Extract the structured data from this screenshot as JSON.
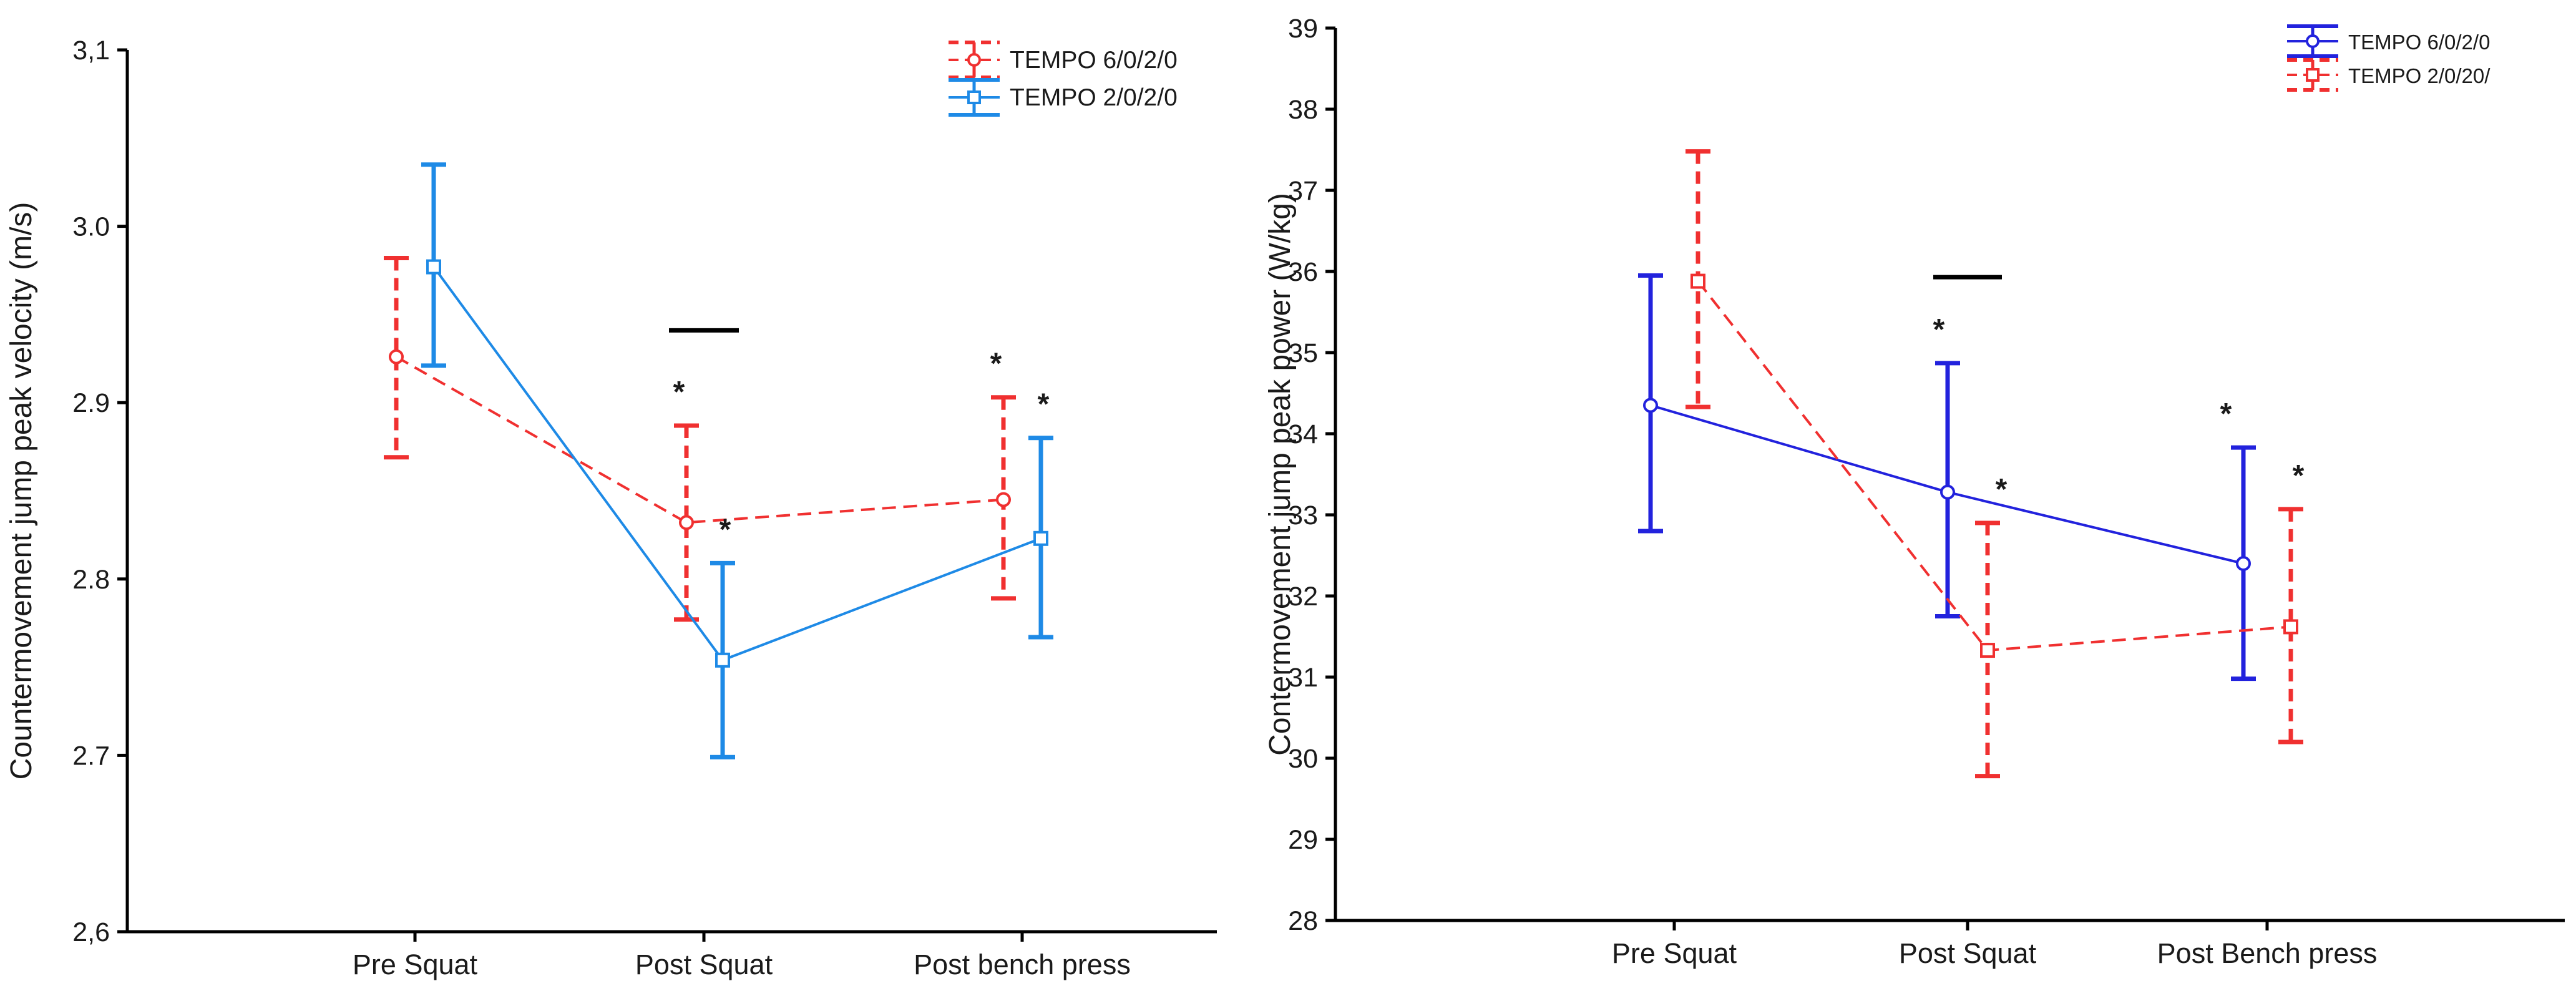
{
  "colors": {
    "left_a": "#f03030",
    "left_b": "#1e8ae6",
    "right_a": "#2222dd",
    "right_b": "#f03030",
    "axis": "#000000"
  },
  "chart_data": [
    {
      "type": "line",
      "title": "",
      "xlabel": "",
      "ylabel": "Countermovement jump peak velocity (m/s)",
      "categories": [
        "Pre Squat",
        "Post Squat",
        "Post bench press"
      ],
      "ylim": [
        2.6,
        3.1
      ],
      "yticks": [
        "2,6",
        "2.7",
        "2.8",
        "2.9",
        "3.0",
        "3,1"
      ],
      "ytick_values": [
        2.6,
        2.7,
        2.8,
        2.9,
        3.0,
        3.1
      ],
      "legend_position": "top-right",
      "series": [
        {
          "name": "TEMPO 6/0/2/0",
          "style": "dashed",
          "marker": "circle",
          "values": [
            2.926,
            2.832,
            2.845
          ],
          "err_low": [
            2.869,
            2.777,
            2.789
          ],
          "err_high": [
            2.982,
            2.887,
            2.903
          ],
          "stars": [
            "",
            "*",
            "*"
          ]
        },
        {
          "name": "TEMPO 2/0/2/0",
          "style": "solid",
          "marker": "square",
          "values": [
            2.977,
            2.754,
            2.823
          ],
          "err_low": [
            2.921,
            2.699,
            2.767
          ],
          "err_high": [
            3.035,
            2.809,
            2.88
          ],
          "stars": [
            "",
            "*",
            "*"
          ]
        }
      ],
      "bracket": {
        "category_index": 1,
        "value": 2.941
      }
    },
    {
      "type": "line",
      "title": "",
      "xlabel": "",
      "ylabel": "Contermovement jump peak power (W/kg)",
      "categories": [
        "Pre Squat",
        "Post Squat",
        "Post Bench press"
      ],
      "ylim": [
        28,
        39
      ],
      "yticks": [
        "28",
        "29",
        "30",
        "31",
        "32",
        "33",
        "34",
        "35",
        "36",
        "37",
        "38",
        "39"
      ],
      "ytick_values": [
        28,
        29,
        30,
        31,
        32,
        33,
        34,
        35,
        36,
        37,
        38,
        39
      ],
      "legend_position": "top-right",
      "series": [
        {
          "name": "TEMPO 6/0/2/0",
          "style": "solid",
          "marker": "circle",
          "values": [
            34.35,
            33.28,
            32.4
          ],
          "err_low": [
            32.8,
            31.75,
            30.98
          ],
          "err_high": [
            35.95,
            34.87,
            33.83
          ],
          "stars": [
            "",
            "*",
            "*"
          ]
        },
        {
          "name": "TEMPO 2/0/20/",
          "style": "dashed",
          "marker": "square",
          "values": [
            35.88,
            31.33,
            31.62
          ],
          "err_low": [
            34.33,
            29.78,
            30.2
          ],
          "err_high": [
            37.48,
            32.9,
            33.07
          ],
          "stars": [
            "",
            "*",
            "*"
          ]
        }
      ],
      "bracket": {
        "category_index": 1,
        "value": 35.93
      }
    }
  ]
}
